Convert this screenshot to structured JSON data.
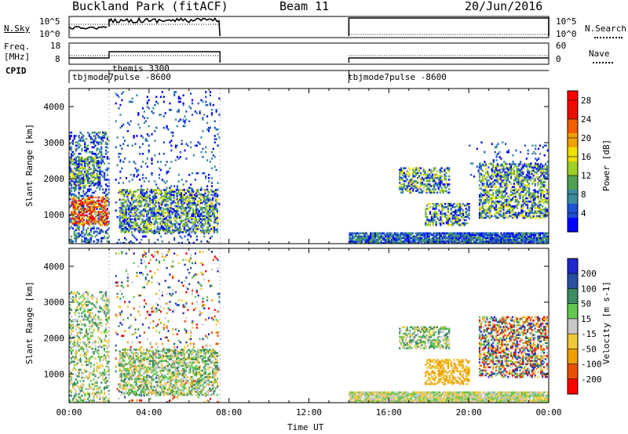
{
  "header": {
    "station": "Buckland Park (fitACF)",
    "beam": "Beam 11",
    "date": "20/Jun/2016"
  },
  "nsky_panel": {
    "left_label": "N.Sky",
    "right_label": "N.Search",
    "left_ticks": [
      "10^5",
      "10^0"
    ],
    "right_ticks": [
      "10^5",
      "10^0"
    ]
  },
  "freq_panel": {
    "left_label_1": "Freq.",
    "left_label_2": "[MHz]",
    "right_label": "Nave",
    "left_ticks": [
      "18",
      "8"
    ],
    "right_ticks": [
      "60",
      "0"
    ]
  },
  "cpid_panel": {
    "label": "CPID",
    "entries": [
      {
        "start_hour": 0.0,
        "text": "tbjmode7pulse -8600"
      },
      {
        "start_hour": 2.0,
        "text": "themis 3300"
      },
      {
        "start_hour": 14.0,
        "text": "tbjmode7pulse -8600"
      }
    ]
  },
  "chart_data": [
    {
      "type": "heatmap",
      "name": "power",
      "ylabel": "Slant Range [km]",
      "y_ticks": [
        "1000",
        "2000",
        "3000",
        "4000"
      ],
      "ylim": [
        200,
        4500
      ],
      "xlim": [
        0,
        24
      ],
      "colorbar": {
        "label": "Power [dB]",
        "ticks": [
          "4",
          "8",
          "12",
          "16",
          "20",
          "24",
          "28"
        ],
        "range": [
          0,
          30
        ],
        "colors": [
          "#0000ff",
          "#1e50d2",
          "#3c8ca0",
          "#50a050",
          "#a0d028",
          "#f0e000",
          "#f0a000",
          "#f06000",
          "#e81000",
          "#ff0000"
        ]
      },
      "regions": [
        {
          "h0": 0.0,
          "h1": 2.0,
          "r0": 200,
          "r1": 3300,
          "kind": "ground-low"
        },
        {
          "h0": 0.1,
          "h1": 1.9,
          "r0": 700,
          "r1": 1500,
          "kind": "strong"
        },
        {
          "h0": 0.0,
          "h1": 1.5,
          "r0": 1800,
          "r1": 2600,
          "kind": "mid"
        },
        {
          "h0": 2.3,
          "h1": 7.5,
          "r0": 200,
          "r1": 4400,
          "kind": "sparse"
        },
        {
          "h0": 2.5,
          "h1": 7.4,
          "r0": 500,
          "r1": 1700,
          "kind": "mid"
        },
        {
          "h0": 14.0,
          "h1": 23.9,
          "r0": 200,
          "r1": 480,
          "kind": "ground"
        },
        {
          "h0": 17.8,
          "h1": 20.0,
          "r0": 700,
          "r1": 1300,
          "kind": "mid"
        },
        {
          "h0": 16.5,
          "h1": 19.0,
          "r0": 1600,
          "r1": 2300,
          "kind": "mid"
        },
        {
          "h0": 20.5,
          "h1": 23.9,
          "r0": 900,
          "r1": 2400,
          "kind": "mid"
        },
        {
          "h0": 20.0,
          "h1": 23.9,
          "r0": 2000,
          "r1": 3000,
          "kind": "sparse"
        }
      ]
    },
    {
      "type": "heatmap",
      "name": "velocity",
      "ylabel": "Slant Range [km]",
      "y_ticks": [
        "1000",
        "2000",
        "3000",
        "4000"
      ],
      "ylim": [
        200,
        4500
      ],
      "xlim": [
        0,
        24
      ],
      "xlabel": "Time UT",
      "x_ticks": [
        "00:00",
        "04:00",
        "08:00",
        "12:00",
        "16:00",
        "20:00",
        "00:00"
      ],
      "colorbar": {
        "label": "Velocity [m s-1]",
        "ticks": [
          "200",
          "100",
          "50",
          "15",
          "-15",
          "-50",
          "-100",
          "-200"
        ],
        "colors": [
          "#1e28c8",
          "#2850a0",
          "#3c8c64",
          "#64c850",
          "#c8c8c8",
          "#f0c83c",
          "#f0a000",
          "#e85000",
          "#ff0000"
        ]
      },
      "regions": [
        {
          "h0": 0.0,
          "h1": 2.0,
          "r0": 200,
          "r1": 3300,
          "kind": "ground-low"
        },
        {
          "h0": 2.3,
          "h1": 7.5,
          "r0": 200,
          "r1": 4400,
          "kind": "sparse"
        },
        {
          "h0": 2.5,
          "h1": 7.4,
          "r0": 400,
          "r1": 1700,
          "kind": "mid"
        },
        {
          "h0": 14.0,
          "h1": 23.9,
          "r0": 200,
          "r1": 480,
          "kind": "ground"
        },
        {
          "h0": 17.8,
          "h1": 20.0,
          "r0": 700,
          "r1": 1400,
          "kind": "neg"
        },
        {
          "h0": 16.5,
          "h1": 19.0,
          "r0": 1700,
          "r1": 2300,
          "kind": "mid"
        },
        {
          "h0": 20.5,
          "h1": 23.9,
          "r0": 900,
          "r1": 2600,
          "kind": "mixed"
        }
      ]
    }
  ],
  "colors": {
    "background": "#ffffff",
    "axis": "#000000"
  }
}
